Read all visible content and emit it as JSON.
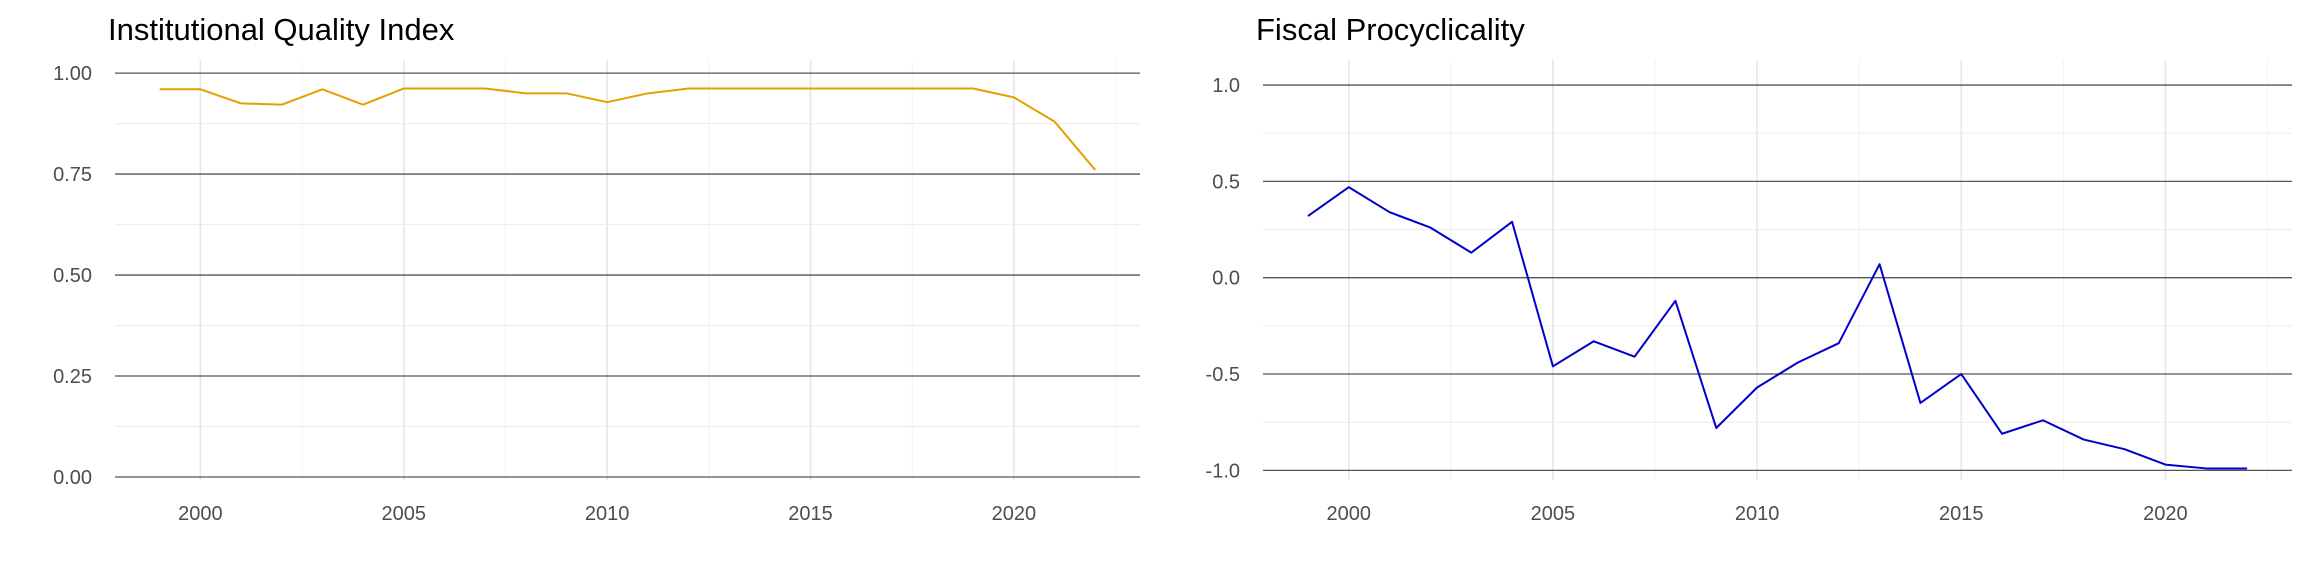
{
  "chart_data": [
    {
      "type": "line",
      "title": "Institutional Quality Index",
      "xlabel": "",
      "ylabel": "",
      "xlim": [
        1997.9,
        2023.1
      ],
      "ylim": [
        -0.0075,
        1.0325
      ],
      "xticks": [
        2000,
        2005,
        2010,
        2015,
        2020
      ],
      "xtick_labels": [
        "2000",
        "2005",
        "2010",
        "2015",
        "2020"
      ],
      "yticks": [
        0,
        0.25,
        0.5,
        0.75,
        1.0
      ],
      "ytick_labels": [
        "0.00",
        "0.25",
        "0.50",
        "0.75",
        "1.00"
      ],
      "color": "#E69F00",
      "grid": true,
      "x": [
        1999,
        2000,
        2001,
        2002,
        2003,
        2004,
        2005,
        2006,
        2007,
        2008,
        2009,
        2010,
        2011,
        2012,
        2013,
        2014,
        2015,
        2016,
        2017,
        2018,
        2019,
        2020,
        2021,
        2022
      ],
      "values": [
        0.96,
        0.96,
        0.925,
        0.922,
        0.96,
        0.922,
        0.962,
        0.962,
        0.962,
        0.95,
        0.95,
        0.928,
        0.95,
        0.962,
        0.962,
        0.962,
        0.962,
        0.962,
        0.962,
        0.962,
        0.962,
        0.94,
        0.88,
        0.76
      ]
    },
    {
      "type": "line",
      "title": "Fiscal Procyclicality",
      "xlabel": "",
      "ylabel": "",
      "xlim": [
        1997.9,
        2023.1
      ],
      "ylim": [
        -1.05,
        1.13
      ],
      "xticks": [
        2000,
        2005,
        2010,
        2015,
        2020
      ],
      "xtick_labels": [
        "2000",
        "2005",
        "2010",
        "2015",
        "2020"
      ],
      "yticks": [
        -1.0,
        -0.5,
        0.0,
        0.5,
        1.0
      ],
      "ytick_labels": [
        "-1.0",
        "-0.5",
        "0.0",
        "0.5",
        "1.0"
      ],
      "color": "#0000CD",
      "grid": true,
      "x": [
        1999,
        2000,
        2001,
        2002,
        2003,
        2004,
        2005,
        2006,
        2007,
        2008,
        2009,
        2010,
        2011,
        2012,
        2013,
        2014,
        2015,
        2016,
        2017,
        2018,
        2019,
        2020,
        2021,
        2022
      ],
      "values": [
        0.32,
        0.47,
        0.34,
        0.26,
        0.13,
        0.29,
        -0.46,
        -0.33,
        -0.41,
        -0.12,
        -0.78,
        -0.57,
        -0.44,
        -0.34,
        0.07,
        -0.65,
        -0.5,
        -0.81,
        -0.74,
        -0.84,
        -0.89,
        -0.97,
        -0.99,
        -0.99
      ]
    }
  ]
}
